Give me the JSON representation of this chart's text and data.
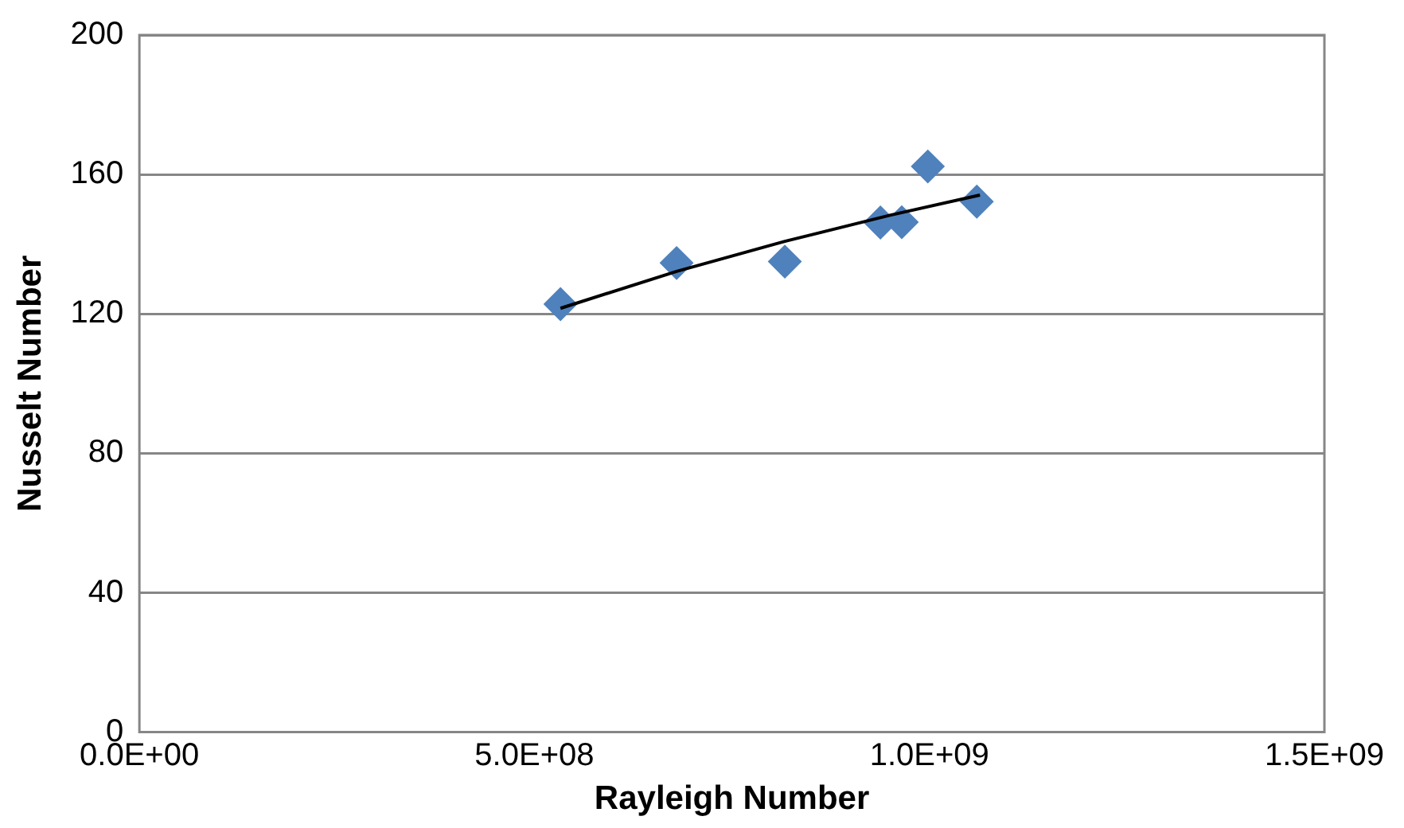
{
  "chart_data": {
    "type": "scatter",
    "xlabel": "Rayleigh Number",
    "ylabel": "Nusselt Number",
    "xlim": [
      0,
      1500000000
    ],
    "ylim": [
      0,
      200
    ],
    "xticks": [
      {
        "value": 0,
        "label": "0.0E+00"
      },
      {
        "value": 500000000,
        "label": "5.0E+08"
      },
      {
        "value": 1000000000,
        "label": "1.0E+09"
      },
      {
        "value": 1500000000,
        "label": "1.5E+09"
      }
    ],
    "yticks": [
      0,
      40,
      80,
      120,
      160,
      200
    ],
    "grid": "y",
    "legend": false,
    "marker": "diamond",
    "series": [
      {
        "color": "#4f81bd",
        "x": [
          533000000,
          680000000,
          817000000,
          938000000,
          965000000,
          998000000,
          1060000000
        ],
        "values": [
          122.8,
          134.6,
          135.0,
          146.2,
          146.3,
          162.3,
          152.2
        ]
      },
      {
        "type": "line",
        "color": "#000000",
        "marker": "none",
        "x": [
          533000000,
          680000000,
          817000000,
          950000000,
          1064000000
        ],
        "values": [
          121.6,
          132.2,
          140.8,
          148.3,
          154.1
        ]
      }
    ]
  }
}
